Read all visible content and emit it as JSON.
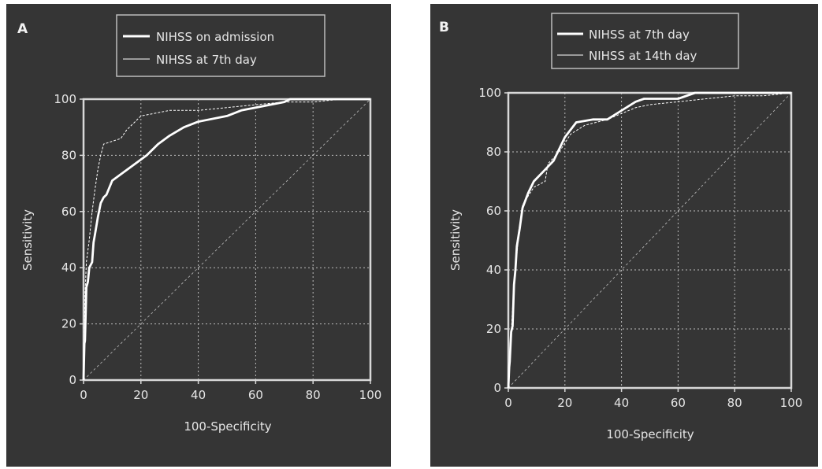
{
  "colors": {
    "background": "#353535",
    "axis": "#d8d8d8",
    "grid": "#bdbdbd",
    "text": "#e6e6e6",
    "curve": "#ffffff",
    "legend_border": "#bdbdbd"
  },
  "chart_data": [
    {
      "panel_label": "A",
      "type": "line",
      "title": "",
      "xlabel": "100-Specificity",
      "ylabel": "Sensitivity",
      "xlim": [
        0,
        100
      ],
      "ylim": [
        0,
        100
      ],
      "xticks": [
        "0",
        "20",
        "40",
        "60",
        "80",
        "100"
      ],
      "yticks": [
        "0",
        "20",
        "40",
        "60",
        "80",
        "100"
      ],
      "grid": true,
      "legend_position": "top",
      "series": [
        {
          "name": "NIHSS on admission",
          "style": "thick",
          "x": [
            0,
            0.3,
            0.5,
            1,
            1.5,
            2,
            3,
            3.5,
            4,
            5,
            6,
            7,
            8,
            10,
            14,
            18,
            22,
            26,
            30,
            35,
            40,
            50,
            55,
            60,
            70,
            72,
            80,
            90,
            100
          ],
          "y": [
            0,
            13,
            14,
            33,
            35,
            40,
            42,
            49,
            52,
            58,
            63,
            65,
            66,
            71,
            74,
            77,
            80,
            84,
            87,
            90,
            92,
            94,
            96,
            97,
            99,
            100,
            100,
            100,
            100
          ]
        },
        {
          "name": "NIHSS at 7th day",
          "style": "thin",
          "x": [
            0,
            0.5,
            1,
            2,
            3,
            4,
            5,
            6,
            7,
            10,
            13,
            15,
            18,
            20,
            25,
            30,
            40,
            50,
            60,
            70,
            80,
            90,
            100
          ],
          "y": [
            0,
            30,
            42,
            50,
            60,
            68,
            75,
            80,
            84,
            85,
            86,
            89,
            92,
            94,
            95,
            96,
            96,
            97,
            98,
            99,
            99,
            100,
            100
          ]
        }
      ]
    },
    {
      "panel_label": "B",
      "type": "line",
      "title": "",
      "xlabel": "100-Specificity",
      "ylabel": "Sensitivity",
      "xlim": [
        0,
        100
      ],
      "ylim": [
        0,
        100
      ],
      "xticks": [
        "0",
        "20",
        "40",
        "60",
        "80",
        "100"
      ],
      "yticks": [
        "0",
        "20",
        "40",
        "60",
        "80",
        "100"
      ],
      "grid": true,
      "legend_position": "top",
      "series": [
        {
          "name": "NIHSS at 7th day",
          "style": "thick",
          "x": [
            0,
            0.3,
            0.5,
            1,
            1.5,
            2,
            2.5,
            3,
            4,
            5,
            7,
            9,
            12,
            16,
            20,
            24,
            30,
            35,
            40,
            45,
            48,
            52,
            60,
            66,
            70,
            80,
            90,
            100
          ],
          "y": [
            0,
            7,
            9,
            19,
            21,
            35,
            40,
            48,
            54,
            61,
            66,
            70,
            73,
            77,
            85,
            90,
            91,
            91,
            94,
            97,
            98,
            98,
            98,
            100,
            100,
            100,
            100,
            100
          ]
        },
        {
          "name": "NIHSS at 14th day",
          "style": "thin",
          "x": [
            0,
            0.5,
            1,
            2,
            3,
            4,
            5,
            7,
            9,
            13,
            14,
            18,
            22,
            27,
            35,
            40,
            45,
            50,
            60,
            70,
            80,
            90,
            100
          ],
          "y": [
            0,
            8,
            18,
            36,
            45,
            55,
            62,
            65,
            68,
            70,
            76,
            80,
            86,
            89,
            91,
            93,
            95,
            96,
            97,
            98,
            99,
            99,
            100
          ]
        }
      ]
    }
  ],
  "panels": [
    {
      "label": "A",
      "legend": [
        "NIHSS on admission",
        "NIHSS at 7th day"
      ]
    },
    {
      "label": "B",
      "legend": [
        "NIHSS at 7th day",
        "NIHSS at 14th day"
      ]
    }
  ]
}
